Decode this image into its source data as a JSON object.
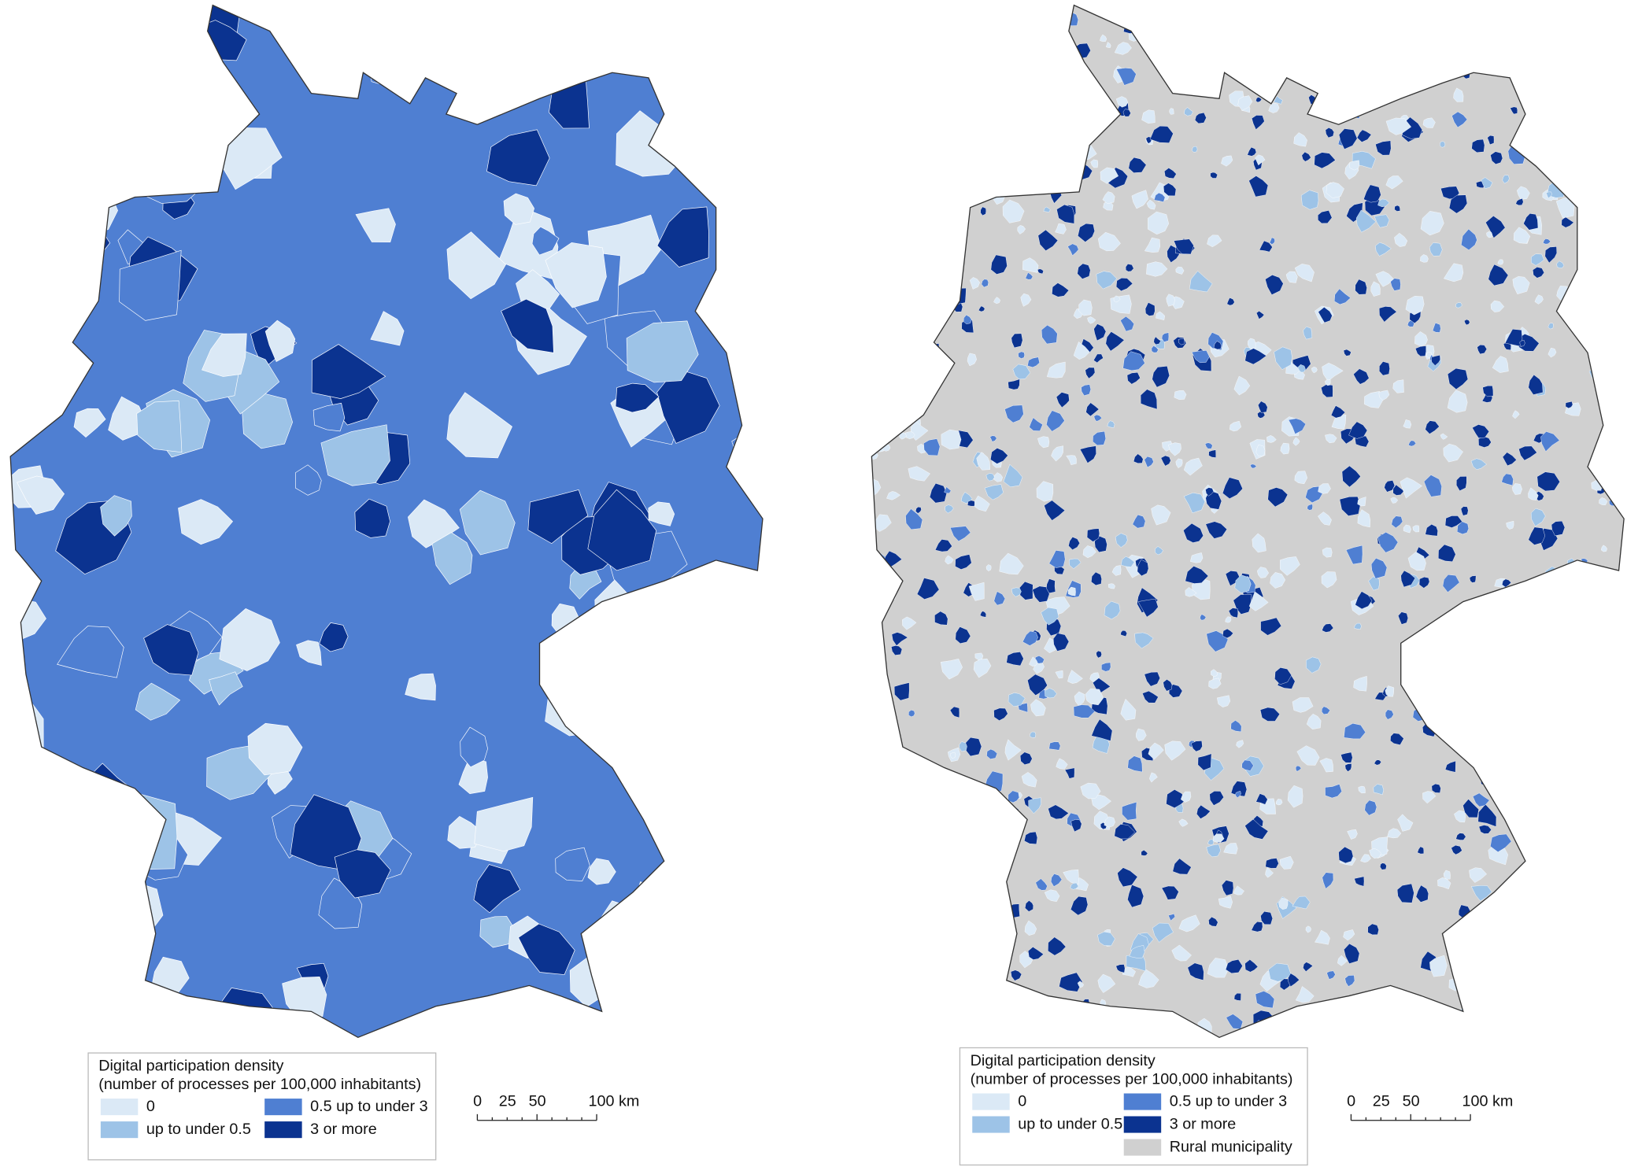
{
  "maps": [
    {
      "legend": {
        "title": "Digital participation density",
        "subtitle": "(number of processes per 100,000 inhabitants)",
        "items": [
          {
            "label": "0",
            "color": "#dbe9f6"
          },
          {
            "label": "up to under 0.5",
            "color": "#9dc3e7"
          },
          {
            "label": "0.5 up to under 3",
            "color": "#4f7fd2"
          },
          {
            "label": "3 or more",
            "color": "#0b3390"
          }
        ]
      },
      "scale": {
        "labels": [
          "0",
          "25",
          "50",
          "100 km"
        ]
      }
    },
    {
      "legend": {
        "title": "Digital participation density",
        "subtitle": "(number of processes per 100,000 inhabitants)",
        "items": [
          {
            "label": "0",
            "color": "#dbe9f6"
          },
          {
            "label": "up to under 0.5",
            "color": "#9dc3e7"
          },
          {
            "label": "0.5 up to under 3",
            "color": "#4f7fd2"
          },
          {
            "label": "3 or more",
            "color": "#0b3390"
          },
          {
            "label": "Rural municipality",
            "color": "#d0d0d0"
          }
        ]
      },
      "scale": {
        "labels": [
          "0",
          "25",
          "50",
          "100 km"
        ]
      }
    }
  ]
}
